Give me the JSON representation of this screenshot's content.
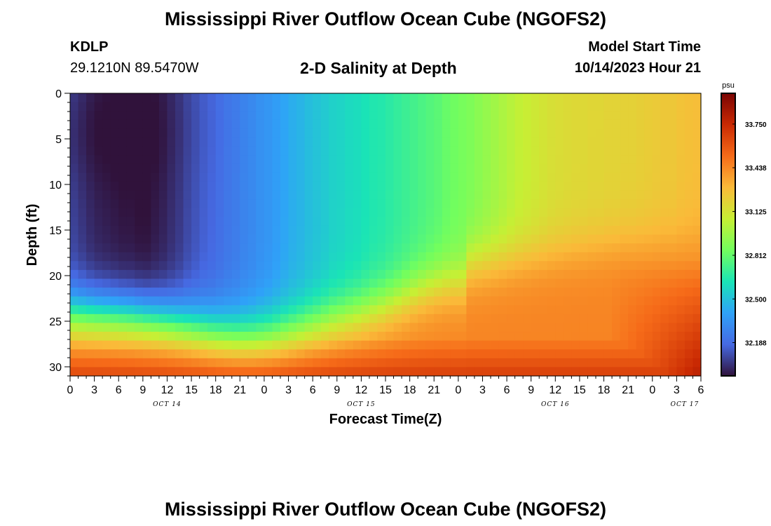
{
  "header": {
    "title": "Mississippi River Outflow Ocean Cube (NGOFS2)",
    "station": "KDLP",
    "coordinates": "29.1210N  89.5470W",
    "subtitle": "2-D Salinity at Depth",
    "model_start_label": "Model Start Time",
    "model_start_value": "10/14/2023 Hour 21"
  },
  "footer": {
    "title": "Mississippi River Outflow Ocean Cube (NGOFS2)"
  },
  "chart_data": {
    "type": "heatmap",
    "title": "2-D Salinity at Depth",
    "xlabel": "Forecast Time(Z)",
    "ylabel": "Depth (ft)",
    "x_ticks": [
      "0",
      "3",
      "6",
      "9",
      "12",
      "15",
      "18",
      "21",
      "0",
      "3",
      "6",
      "9",
      "12",
      "15",
      "18",
      "21",
      "0",
      "3",
      "6",
      "9",
      "12",
      "15",
      "18",
      "21",
      "0",
      "3",
      "6"
    ],
    "x_range_hours": [
      0,
      78
    ],
    "day_labels": [
      {
        "label": "OCT 14",
        "hour": 12
      },
      {
        "label": "OCT 15",
        "hour": 36
      },
      {
        "label": "OCT 16",
        "hour": 60
      },
      {
        "label": "OCT 17",
        "hour": 76
      }
    ],
    "y_ticks": [
      0,
      5,
      10,
      15,
      20,
      25,
      30
    ],
    "y_range": [
      0,
      31
    ],
    "y_reversed": true,
    "colorbar": {
      "unit": "psu",
      "ticks": [
        "33.750",
        "33.438",
        "33.125",
        "32.812",
        "32.500",
        "32.188"
      ],
      "tick_values": [
        33.75,
        33.438,
        33.125,
        32.812,
        32.5,
        32.188
      ],
      "range": [
        31.95,
        33.97
      ],
      "colormap": [
        "#30123b",
        "#4669e2",
        "#2fa2f8",
        "#1ae4b6",
        "#72fe5e",
        "#c7ef34",
        "#faba39",
        "#f66b19",
        "#c92903",
        "#7a0403"
      ]
    },
    "time_columns": 78,
    "depth_rows": [
      0,
      1,
      2,
      3,
      4,
      5,
      6,
      7,
      8,
      9,
      10,
      11,
      12,
      13,
      14,
      15,
      16,
      17,
      18,
      19,
      20,
      21,
      22,
      23,
      24,
      25,
      26,
      27,
      28,
      29,
      30,
      31
    ],
    "salinity": [
      [
        32.07,
        32.04,
        32.01,
        31.99,
        31.98,
        31.97,
        31.96,
        31.96,
        31.95,
        31.95,
        31.97,
        31.99,
        32.02,
        32.05,
        32.09,
        32.12,
        32.15,
        32.17,
        32.2,
        32.23,
        32.25,
        32.28,
        32.3,
        32.33,
        32.35,
        32.38,
        32.41,
        32.44,
        32.46,
        32.49,
        32.51,
        32.53,
        32.56,
        32.57,
        32.59,
        32.6,
        32.62,
        32.64,
        32.65,
        32.67,
        32.69,
        32.71,
        32.73,
        32.75,
        32.77,
        32.79,
        32.82,
        32.84,
        32.86,
        32.88,
        32.91,
        32.94,
        32.97,
        33.0,
        33.03,
        33.06,
        33.08,
        33.1,
        33.12,
        33.14,
        33.15,
        33.16,
        33.17,
        33.17,
        33.18,
        33.18,
        33.19,
        33.19,
        33.2,
        33.2,
        33.21,
        33.22,
        33.23,
        33.24,
        33.24,
        33.26,
        33.27,
        33.28
      ],
      [
        32.07,
        32.04,
        32.01,
        31.99,
        31.98,
        31.97,
        31.96,
        31.96,
        31.95,
        31.95,
        31.97,
        31.99,
        32.02,
        32.05,
        32.09,
        32.12,
        32.15,
        32.17,
        32.2,
        32.23,
        32.25,
        32.28,
        32.3,
        32.33,
        32.35,
        32.38,
        32.41,
        32.44,
        32.46,
        32.49,
        32.51,
        32.53,
        32.56,
        32.57,
        32.59,
        32.6,
        32.62,
        32.64,
        32.65,
        32.67,
        32.69,
        32.71,
        32.73,
        32.75,
        32.77,
        32.79,
        32.82,
        32.84,
        32.86,
        32.88,
        32.91,
        32.94,
        32.97,
        33.0,
        33.03,
        33.06,
        33.08,
        33.1,
        33.12,
        33.14,
        33.15,
        33.16,
        33.17,
        33.17,
        33.18,
        33.18,
        33.19,
        33.19,
        33.2,
        33.2,
        33.21,
        33.22,
        33.23,
        33.24,
        33.24,
        33.26,
        33.27,
        33.28
      ]
    ],
    "salinity_generation": "bands"
  }
}
